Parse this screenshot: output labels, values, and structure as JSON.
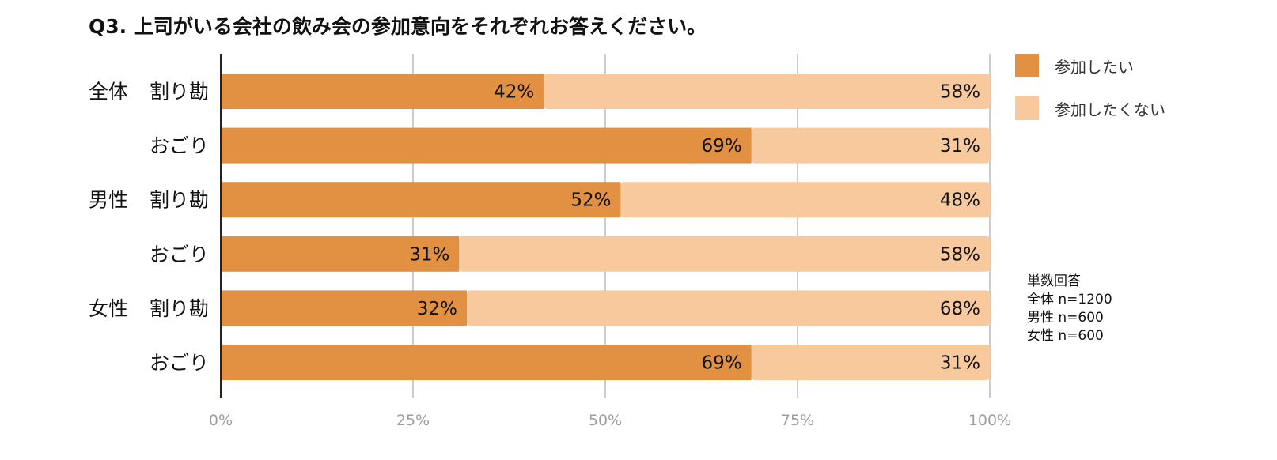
{
  "title": "Q3. 上司がいる会社の飲み会の参加意向をそれぞれお答えください。",
  "colors": {
    "want": "#e29142",
    "not_want": "#f7c99c"
  },
  "legend": [
    {
      "label": "参加したい",
      "color": "#e29142"
    },
    {
      "label": "参加したくない",
      "color": "#f7c99c"
    }
  ],
  "note": [
    "単数回答",
    "全体 n=1200",
    "男性 n=600",
    "女性 n=600"
  ],
  "chart_data": {
    "type": "bar",
    "orientation": "horizontal",
    "stacked": true,
    "groups": [
      "全体",
      "男性",
      "女性"
    ],
    "categories": [
      "全体 割り勘",
      "全体 おごり",
      "男性 割り勘",
      "男性 おごり",
      "女性 割り勘",
      "女性 おごり"
    ],
    "rows": [
      {
        "group": "全体",
        "sub": "割り勘"
      },
      {
        "group": "",
        "sub": "おごり"
      },
      {
        "group": "男性",
        "sub": "割り勘"
      },
      {
        "group": "",
        "sub": "おごり"
      },
      {
        "group": "女性",
        "sub": "割り勘"
      },
      {
        "group": "",
        "sub": "おごり"
      }
    ],
    "series": [
      {
        "name": "参加したい",
        "values": [
          42,
          69,
          52,
          31,
          32,
          69
        ],
        "labels": [
          "42%",
          "69%",
          "52%",
          "31%",
          "32%",
          "69%"
        ]
      },
      {
        "name": "参加したくない",
        "values": [
          58,
          31,
          48,
          58,
          68,
          31
        ],
        "labels": [
          "58%",
          "31%",
          "48%",
          "58%",
          "68%",
          "31%"
        ]
      }
    ],
    "xlim": [
      0,
      100
    ],
    "xticks": [
      "0%",
      "25%",
      "50%",
      "75%",
      "100%"
    ],
    "grid": true,
    "legend_position": "top-right"
  }
}
